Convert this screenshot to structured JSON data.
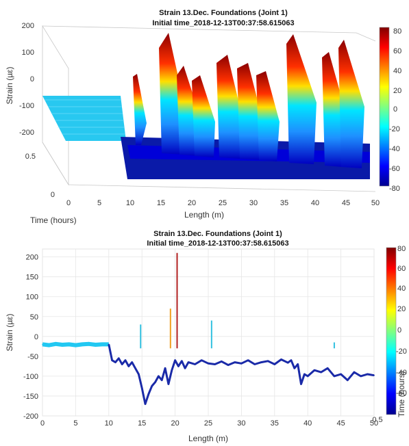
{
  "charts": [
    {
      "title": "Strain 13.Dec. Foundations (Joint 1)",
      "subtitle": "Initial time_2018-12-13T00:37:58.615063"
    },
    {
      "title": "Strain 13.Dec. Foundations (Joint 1)",
      "subtitle": "Initial time_2018-12-13T00:37:58.615063"
    }
  ],
  "chart_data": [
    {
      "type": "area",
      "view": "3d-surface",
      "title": "Strain 13.Dec. Foundations (Joint 1)",
      "subtitle": "Initial time_2018-12-13T00:37:58.615063",
      "xlabel": "Length (m)",
      "ylabel": "Time (hours)",
      "zlabel": "Strain (µε)",
      "xlim": [
        0,
        50
      ],
      "ylim": [
        0,
        0.5
      ],
      "zlim": [
        -200,
        200
      ],
      "x_ticks": [
        "0",
        "5",
        "10",
        "15",
        "20",
        "25",
        "30",
        "35",
        "40",
        "45",
        "50"
      ],
      "y_ticks": [
        "0",
        "0.5"
      ],
      "z_ticks": [
        "200",
        "100",
        "0",
        "-100",
        "-200"
      ],
      "colorbar": {
        "ticks": [
          "80",
          "60",
          "40",
          "20",
          "0",
          "-20",
          "-40",
          "-60",
          "-80"
        ],
        "range": [
          -80,
          80
        ],
        "colormap": "jet"
      },
      "peaks": [
        {
          "x": 14.5,
          "z": 30
        },
        {
          "x": 16.5,
          "z": 120
        },
        {
          "x": 19.5,
          "z": 60
        },
        {
          "x": 21,
          "z": 150
        },
        {
          "x": 25,
          "z": 90
        },
        {
          "x": 27,
          "z": 100
        },
        {
          "x": 30,
          "z": 70
        },
        {
          "x": 34,
          "z": 60
        },
        {
          "x": 39,
          "z": 170
        },
        {
          "x": 42,
          "z": 120
        },
        {
          "x": 44,
          "z": 160
        }
      ],
      "baseline_segments": [
        {
          "x": [
            0,
            10
          ],
          "z": -20
        },
        {
          "x": [
            10,
            50
          ],
          "z": -65
        }
      ]
    },
    {
      "type": "line",
      "title": "Strain 13.Dec. Foundations (Joint 1)",
      "subtitle": "Initial time_2018-12-13T00:37:58.615063",
      "xlabel": "Length (m)",
      "ylabel": "Strain (µε)",
      "xlim": [
        0,
        50
      ],
      "ylim": [
        -200,
        220
      ],
      "grid": true,
      "x_ticks": [
        "0",
        "5",
        "10",
        "15",
        "20",
        "25",
        "30",
        "35",
        "40",
        "45",
        "50"
      ],
      "y_ticks": [
        "200",
        "150",
        "100",
        "50",
        "0",
        "-50",
        "-100",
        "-150",
        "-200"
      ],
      "corner_tick": "0.5",
      "colorbar": {
        "label": "Time (hours)",
        "ticks": [
          "80",
          "60",
          "40",
          "20",
          "0",
          "-20",
          "-40",
          "-60"
        ],
        "range": [
          -80,
          80
        ],
        "colormap": "jet"
      },
      "series": [
        {
          "x": [
            0,
            1,
            2,
            3,
            4,
            5,
            6,
            7,
            8,
            9,
            10
          ],
          "y": [
            -20,
            -22,
            -19,
            -21,
            -20,
            -22,
            -20,
            -19,
            -21,
            -20,
            -20
          ]
        },
        {
          "x": [
            10,
            10.5,
            11,
            11.5,
            12,
            12.5,
            13,
            13.5,
            14,
            14.5,
            15,
            15.5,
            16,
            16.5,
            17,
            17.5,
            18,
            18.5,
            19,
            19.5,
            20,
            20.5,
            21,
            21.5,
            22,
            23,
            24,
            25,
            26,
            27,
            28,
            29,
            30,
            31,
            32,
            33,
            34,
            35,
            36,
            37,
            37.5,
            38,
            38.5,
            39,
            39.5,
            40,
            41,
            42,
            43,
            44,
            45,
            46,
            47,
            48,
            49,
            50
          ],
          "y": [
            -20,
            -60,
            -65,
            -55,
            -70,
            -60,
            -75,
            -65,
            -80,
            -95,
            -130,
            -170,
            -145,
            -125,
            -115,
            -100,
            -110,
            -80,
            -120,
            -85,
            -60,
            -75,
            -62,
            -80,
            -65,
            -70,
            -60,
            -68,
            -70,
            -63,
            -72,
            -65,
            -68,
            -60,
            -70,
            -65,
            -62,
            -70,
            -58,
            -66,
            -60,
            -80,
            -70,
            -120,
            -95,
            -100,
            -85,
            -90,
            -80,
            -100,
            -95,
            -110,
            -90,
            -100,
            -95,
            -98
          ]
        }
      ],
      "peaks": [
        {
          "x": 14.8,
          "y": 30
        },
        {
          "x": 19.3,
          "y": 70
        },
        {
          "x": 20.3,
          "y": 210
        },
        {
          "x": 25.5,
          "y": 40
        },
        {
          "x": 44,
          "y": -15
        }
      ]
    }
  ]
}
